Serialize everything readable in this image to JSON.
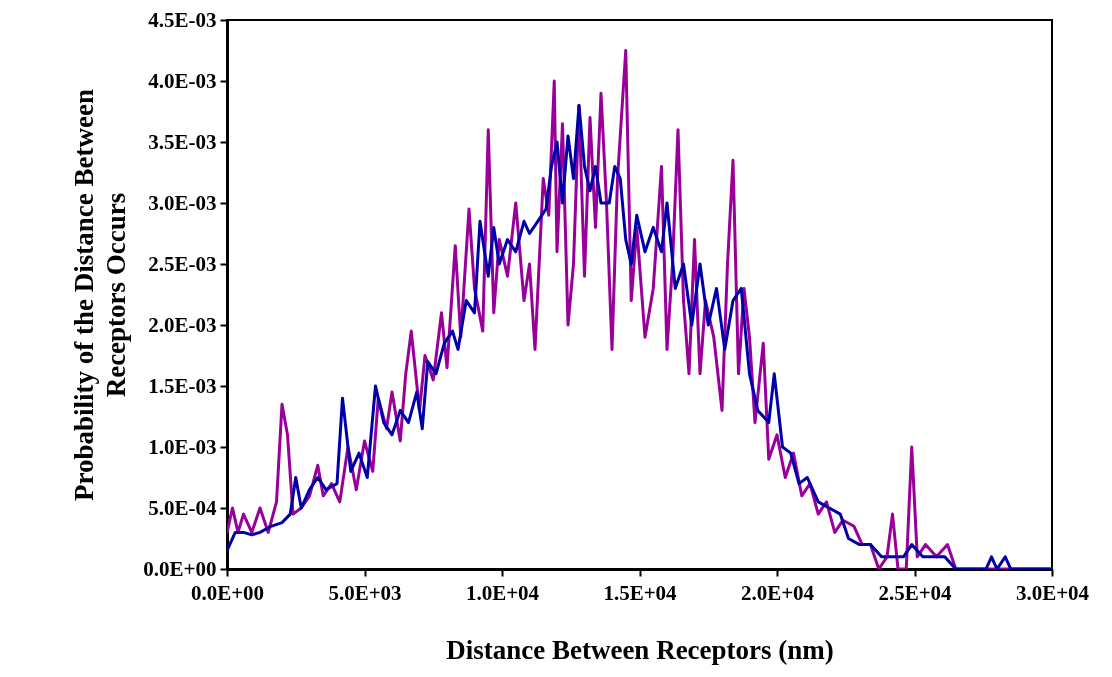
{
  "chart_data": {
    "type": "line",
    "xlabel": "Distance Between Receptors (nm)",
    "ylabel": "Probability of the Distance Between Receptors Occurs",
    "xlim": [
      0,
      30000
    ],
    "ylim": [
      0,
      0.0045
    ],
    "xticks": [
      {
        "value": 0,
        "label": "0.0E+00"
      },
      {
        "value": 5000,
        "label": "5.0E+03"
      },
      {
        "value": 10000,
        "label": "1.0E+04"
      },
      {
        "value": 15000,
        "label": "1.5E+04"
      },
      {
        "value": 20000,
        "label": "2.0E+04"
      },
      {
        "value": 25000,
        "label": "2.5E+04"
      },
      {
        "value": 30000,
        "label": "3.0E+04"
      }
    ],
    "yticks": [
      {
        "value": 0,
        "label": "0.0E+00"
      },
      {
        "value": 0.0005,
        "label": "5.0E-04"
      },
      {
        "value": 0.001,
        "label": "1.0E-03"
      },
      {
        "value": 0.0015,
        "label": "1.5E-03"
      },
      {
        "value": 0.002,
        "label": "2.0E-03"
      },
      {
        "value": 0.0025,
        "label": "2.5E-03"
      },
      {
        "value": 0.003,
        "label": "3.0E-03"
      },
      {
        "value": 0.0035,
        "label": "3.5E-03"
      },
      {
        "value": 0.004,
        "label": "4.0E-03"
      },
      {
        "value": 0.0045,
        "label": "4.5E-03"
      }
    ],
    "grid": false,
    "series": [
      {
        "color": "#990099",
        "x": [
          0,
          200,
          400,
          600,
          900,
          1200,
          1500,
          1800,
          2000,
          2200,
          2400,
          2700,
          3000,
          3300,
          3500,
          3800,
          4100,
          4400,
          4700,
          5000,
          5300,
          5500,
          5800,
          6000,
          6300,
          6500,
          6700,
          7000,
          7200,
          7500,
          7800,
          8000,
          8300,
          8500,
          8800,
          9000,
          9300,
          9500,
          9700,
          9900,
          10200,
          10500,
          10800,
          11000,
          11200,
          11500,
          11700,
          11900,
          12000,
          12200,
          12400,
          12600,
          12800,
          13000,
          13200,
          13400,
          13600,
          13800,
          14000,
          14200,
          14500,
          14700,
          14900,
          15200,
          15500,
          15800,
          16000,
          16200,
          16400,
          16600,
          16800,
          17000,
          17200,
          17400,
          17700,
          18000,
          18200,
          18400,
          18600,
          18800,
          19000,
          19200,
          19500,
          19700,
          20000,
          20300,
          20600,
          20900,
          21200,
          21500,
          21800,
          22100,
          22400,
          22800,
          23100,
          23400,
          23700,
          24000,
          24200,
          24400,
          24700,
          24900,
          25100,
          25400,
          25800,
          26200,
          26500,
          27000,
          28000,
          30000
        ],
        "values": [
          0.0003,
          0.0005,
          0.0003,
          0.00045,
          0.0003,
          0.0005,
          0.0003,
          0.00055,
          0.00135,
          0.0011,
          0.00045,
          0.0005,
          0.0006,
          0.00085,
          0.0006,
          0.0007,
          0.00055,
          0.001,
          0.00065,
          0.00105,
          0.0008,
          0.0014,
          0.00115,
          0.00145,
          0.00105,
          0.0016,
          0.00195,
          0.0013,
          0.00175,
          0.00155,
          0.0021,
          0.00165,
          0.00265,
          0.0019,
          0.00295,
          0.0023,
          0.00195,
          0.0036,
          0.0021,
          0.0027,
          0.0024,
          0.003,
          0.0022,
          0.0025,
          0.0018,
          0.0032,
          0.0029,
          0.004,
          0.0026,
          0.00365,
          0.002,
          0.0025,
          0.0038,
          0.0024,
          0.0037,
          0.0028,
          0.0039,
          0.003,
          0.0018,
          0.0032,
          0.00425,
          0.0022,
          0.0028,
          0.0019,
          0.0023,
          0.0033,
          0.0018,
          0.0025,
          0.0036,
          0.0022,
          0.0016,
          0.0027,
          0.0016,
          0.0022,
          0.0019,
          0.0013,
          0.0025,
          0.00335,
          0.0016,
          0.0023,
          0.0019,
          0.0012,
          0.00185,
          0.0009,
          0.0011,
          0.00075,
          0.00095,
          0.0006,
          0.0007,
          0.00045,
          0.00055,
          0.0003,
          0.0004,
          0.00035,
          0.0002,
          0.0002,
          0,
          0.0001,
          0.00045,
          0,
          0,
          0.001,
          0.0001,
          0.0002,
          0.0001,
          0.0002,
          0,
          0,
          0,
          0
        ]
      },
      {
        "color": "#0000aa",
        "x": [
          0,
          300,
          600,
          900,
          1200,
          1600,
          2000,
          2300,
          2500,
          2700,
          3000,
          3300,
          3600,
          4000,
          4200,
          4500,
          4800,
          5100,
          5400,
          5700,
          6000,
          6300,
          6600,
          6900,
          7100,
          7300,
          7600,
          7900,
          8200,
          8400,
          8700,
          9000,
          9200,
          9500,
          9700,
          9900,
          10200,
          10500,
          10800,
          11000,
          11300,
          11600,
          11800,
          12000,
          12200,
          12400,
          12600,
          12800,
          13000,
          13200,
          13400,
          13600,
          13900,
          14100,
          14300,
          14500,
          14700,
          14900,
          15200,
          15500,
          15800,
          16000,
          16300,
          16600,
          16900,
          17200,
          17500,
          17800,
          18100,
          18400,
          18700,
          19000,
          19300,
          19700,
          19900,
          20200,
          20500,
          20800,
          21100,
          21500,
          21900,
          22300,
          22600,
          23000,
          23400,
          23800,
          24200,
          24600,
          24900,
          25300,
          25700,
          26100,
          26500,
          27000,
          27600,
          27800,
          28000,
          28300,
          28500,
          30000
        ],
        "values": [
          0.00015,
          0.0003,
          0.0003,
          0.00028,
          0.0003,
          0.00035,
          0.00038,
          0.00045,
          0.00075,
          0.0005,
          0.00065,
          0.00075,
          0.00065,
          0.0007,
          0.0014,
          0.0008,
          0.00095,
          0.00075,
          0.0015,
          0.0012,
          0.0011,
          0.0013,
          0.0012,
          0.00145,
          0.00115,
          0.0017,
          0.0016,
          0.00185,
          0.00195,
          0.0018,
          0.0022,
          0.0021,
          0.00285,
          0.0024,
          0.0028,
          0.0025,
          0.0027,
          0.0026,
          0.00285,
          0.00275,
          0.00285,
          0.00295,
          0.0033,
          0.0035,
          0.003,
          0.00355,
          0.0032,
          0.0038,
          0.0033,
          0.0031,
          0.0033,
          0.003,
          0.003,
          0.0033,
          0.0032,
          0.0027,
          0.0025,
          0.0029,
          0.0026,
          0.0028,
          0.0026,
          0.003,
          0.0023,
          0.0025,
          0.002,
          0.0025,
          0.002,
          0.0023,
          0.0018,
          0.0022,
          0.0023,
          0.0016,
          0.0013,
          0.0012,
          0.0016,
          0.001,
          0.00095,
          0.0007,
          0.00075,
          0.00055,
          0.0005,
          0.00045,
          0.00025,
          0.0002,
          0.0002,
          0.0001,
          0.0001,
          0.0001,
          0.0002,
          0.0001,
          0.0001,
          0.0001,
          0,
          0,
          0,
          0.0001,
          0,
          0.0001,
          0,
          0
        ]
      }
    ]
  }
}
